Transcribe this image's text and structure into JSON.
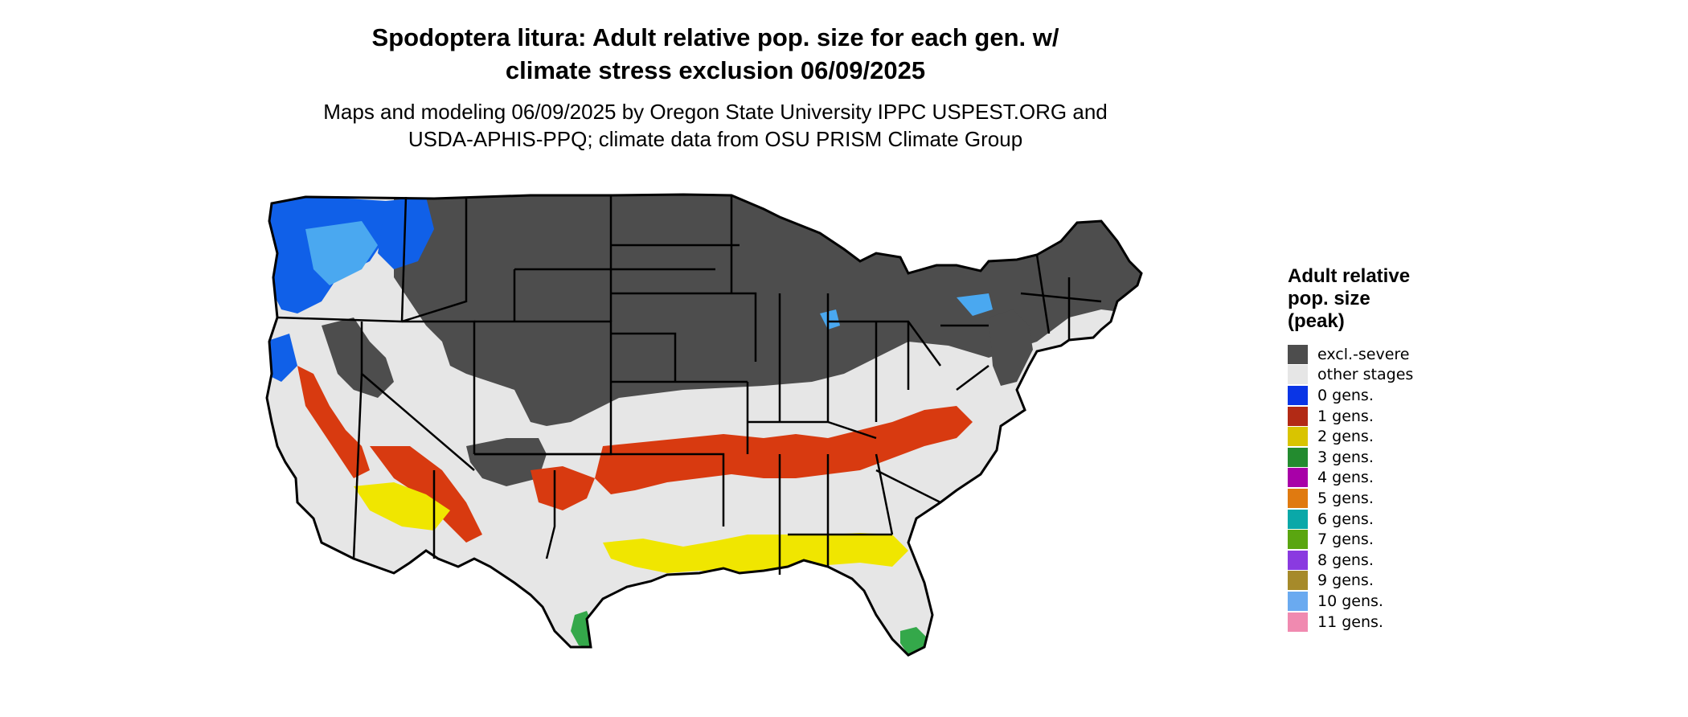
{
  "title_line1": "Spodoptera litura: Adult relative pop. size for each gen. w/",
  "title_line2": "climate stress exclusion 06/09/2025",
  "subtitle_line1": "Maps and modeling 06/09/2025 by Oregon State University IPPC USPEST.ORG and",
  "subtitle_line2": "USDA-APHIS-PPQ; climate data from OSU PRISM Climate Group",
  "legend": {
    "title": "Adult relative\npop. size\n(peak)",
    "items": [
      {
        "label": "excl.-severe",
        "color": "#4d4d4d"
      },
      {
        "label": "other stages",
        "color": "#e6e6e6"
      },
      {
        "label": "0 gens.",
        "color": "#0a35e6"
      },
      {
        "label": "1 gens.",
        "color": "#b22a15"
      },
      {
        "label": "2 gens.",
        "color": "#d9c400"
      },
      {
        "label": "3 gens.",
        "color": "#238b2f"
      },
      {
        "label": "4 gens.",
        "color": "#a800a8"
      },
      {
        "label": "5 gens.",
        "color": "#e07a10"
      },
      {
        "label": "6 gens.",
        "color": "#0aa8a8"
      },
      {
        "label": "7 gens.",
        "color": "#5aa610"
      },
      {
        "label": "8 gens.",
        "color": "#8a3ae0"
      },
      {
        "label": "9 gens.",
        "color": "#a68a2a"
      },
      {
        "label": "10 gens.",
        "color": "#6aaaf0"
      },
      {
        "label": "11 gens.",
        "color": "#f08ab0"
      }
    ]
  },
  "map_colors": {
    "excluded": "#4d4d4d",
    "other": "#e6e6e6",
    "zero": "#1060e8",
    "zero_light": "#4aa8f0",
    "one": "#d83a10",
    "two": "#f0e600",
    "three": "#34a84a",
    "border": "#000000"
  }
}
